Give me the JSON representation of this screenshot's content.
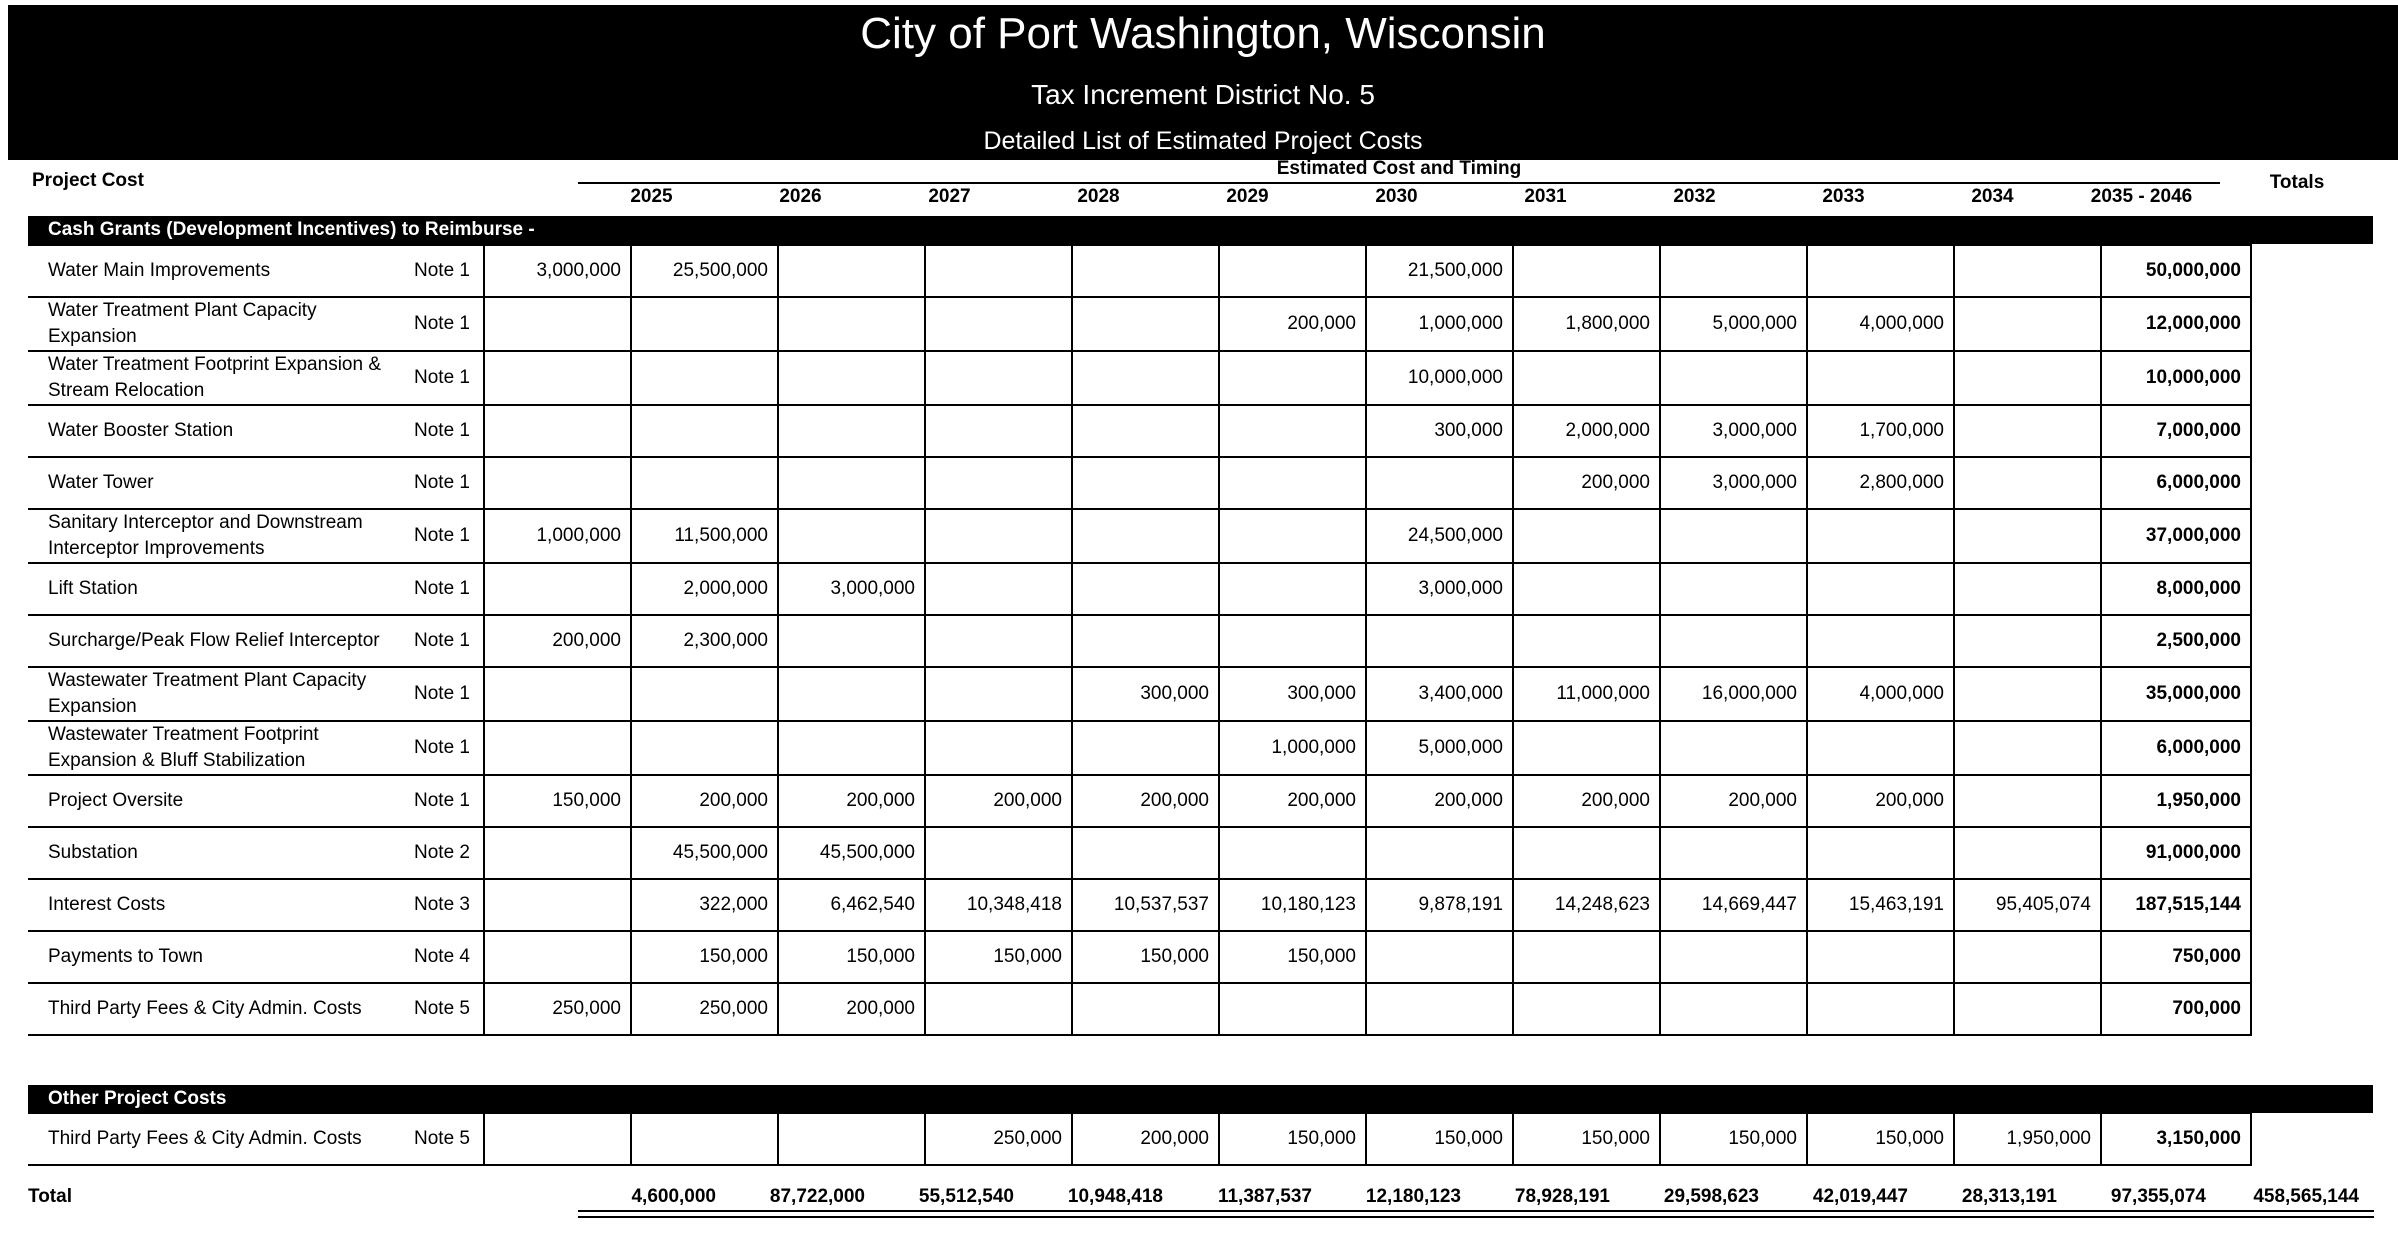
{
  "title": "City of Port Washington, Wisconsin",
  "subtitle": "Tax Increment District No. 5",
  "subtitle2": "Detailed List of Estimated Project Costs",
  "headers": {
    "project_cost": "Project Cost",
    "estimated": "Estimated Cost and Timing",
    "totals": "Totals",
    "years": [
      "2025",
      "2026",
      "2027",
      "2028",
      "2029",
      "2030",
      "2031",
      "2032",
      "2033",
      "2034",
      "2035 - 2046"
    ]
  },
  "section1": "Cash Grants (Development Incentives) to Reimburse -",
  "rows1": [
    {
      "name": "Water Main Improvements",
      "note": "Note 1",
      "values": [
        "3,000,000",
        "25,500,000",
        "",
        "",
        "",
        "",
        "21,500,000",
        "",
        "",
        "",
        ""
      ],
      "total": "50,000,000"
    },
    {
      "name": "Water Treatment Plant Capacity Expansion",
      "note": "Note 1",
      "values": [
        "",
        "",
        "",
        "",
        "",
        "200,000",
        "1,000,000",
        "1,800,000",
        "5,000,000",
        "4,000,000",
        ""
      ],
      "total": "12,000,000"
    },
    {
      "name": "Water Treatment Footprint Expansion & Stream Relocation",
      "note": "Note 1",
      "values": [
        "",
        "",
        "",
        "",
        "",
        "",
        "10,000,000",
        "",
        "",
        "",
        ""
      ],
      "total": "10,000,000"
    },
    {
      "name": "Water Booster Station",
      "note": "Note 1",
      "values": [
        "",
        "",
        "",
        "",
        "",
        "",
        "300,000",
        "2,000,000",
        "3,000,000",
        "1,700,000",
        ""
      ],
      "total": "7,000,000"
    },
    {
      "name": "Water Tower",
      "note": "Note 1",
      "values": [
        "",
        "",
        "",
        "",
        "",
        "",
        "",
        "200,000",
        "3,000,000",
        "2,800,000",
        ""
      ],
      "total": "6,000,000"
    },
    {
      "name": "Sanitary Interceptor and Downstream Interceptor Improvements",
      "note": "Note 1",
      "values": [
        "1,000,000",
        "11,500,000",
        "",
        "",
        "",
        "",
        "24,500,000",
        "",
        "",
        "",
        ""
      ],
      "total": "37,000,000"
    },
    {
      "name": "Lift Station",
      "note": "Note 1",
      "values": [
        "",
        "2,000,000",
        "3,000,000",
        "",
        "",
        "",
        "3,000,000",
        "",
        "",
        "",
        ""
      ],
      "total": "8,000,000"
    },
    {
      "name": "Surcharge/Peak Flow Relief Interceptor",
      "note": "Note 1",
      "values": [
        "200,000",
        "2,300,000",
        "",
        "",
        "",
        "",
        "",
        "",
        "",
        "",
        ""
      ],
      "total": "2,500,000"
    },
    {
      "name": "Wastewater Treatment Plant Capacity Expansion",
      "note": "Note 1",
      "values": [
        "",
        "",
        "",
        "",
        "300,000",
        "300,000",
        "3,400,000",
        "11,000,000",
        "16,000,000",
        "4,000,000",
        ""
      ],
      "total": "35,000,000"
    },
    {
      "name": "Wastewater Treatment Footprint Expansion & Bluff Stabilization",
      "note": "Note 1",
      "values": [
        "",
        "",
        "",
        "",
        "",
        "1,000,000",
        "5,000,000",
        "",
        "",
        "",
        ""
      ],
      "total": "6,000,000"
    },
    {
      "name": "Project Oversite",
      "note": "Note 1",
      "values": [
        "150,000",
        "200,000",
        "200,000",
        "200,000",
        "200,000",
        "200,000",
        "200,000",
        "200,000",
        "200,000",
        "200,000",
        ""
      ],
      "total": "1,950,000"
    },
    {
      "name": "Substation",
      "note": "Note 2",
      "values": [
        "",
        "45,500,000",
        "45,500,000",
        "",
        "",
        "",
        "",
        "",
        "",
        "",
        ""
      ],
      "total": "91,000,000"
    },
    {
      "name": "Interest Costs",
      "note": "Note 3",
      "values": [
        "",
        "322,000",
        "6,462,540",
        "10,348,418",
        "10,537,537",
        "10,180,123",
        "9,878,191",
        "14,248,623",
        "14,669,447",
        "15,463,191",
        "95,405,074"
      ],
      "total": "187,515,144"
    },
    {
      "name": "Payments to Town",
      "note": "Note 4",
      "values": [
        "",
        "150,000",
        "150,000",
        "150,000",
        "150,000",
        "150,000",
        "",
        "",
        "",
        "",
        ""
      ],
      "total": "750,000"
    },
    {
      "name": "Third Party Fees & City Admin. Costs",
      "note": "Note 5",
      "values": [
        "250,000",
        "250,000",
        "200,000",
        "",
        "",
        "",
        "",
        "",
        "",
        "",
        ""
      ],
      "total": "700,000"
    }
  ],
  "section2": "Other Project Costs",
  "rows2": [
    {
      "name": "Third Party Fees & City Admin. Costs",
      "note": "Note 5",
      "values": [
        "",
        "",
        "",
        "250,000",
        "200,000",
        "150,000",
        "150,000",
        "150,000",
        "150,000",
        "150,000",
        "1,950,000"
      ],
      "total": "3,150,000"
    }
  ],
  "total_row": {
    "label": "Total",
    "values": [
      "4,600,000",
      "87,722,000",
      "55,512,540",
      "10,948,418",
      "11,387,537",
      "12,180,123",
      "78,928,191",
      "29,598,623",
      "42,019,447",
      "28,313,191",
      "97,355,074"
    ],
    "total": "458,565,144"
  }
}
